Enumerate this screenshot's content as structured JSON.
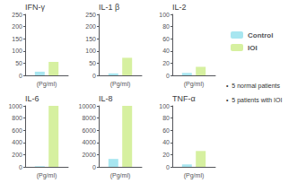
{
  "chart_data": [
    {
      "type": "bar",
      "title": "IFN-γ",
      "xlabel": "(Pg/ml)",
      "categories": [
        null
      ],
      "series": [
        {
          "name": "Control",
          "color": "#a8e6f0",
          "values": [
            15
          ]
        },
        {
          "name": "IOI",
          "color": "#d6f0a0",
          "values": [
            55
          ]
        }
      ],
      "ylim": [
        0,
        250
      ],
      "yticks": [
        0,
        50,
        100,
        150,
        200,
        250
      ],
      "grid": false,
      "tick_labels": "y",
      "legend": "right",
      "annotations": [
        "•  5 normal patients",
        "•  5 patients with IOI"
      ]
    },
    {
      "type": "bar",
      "title": "IL-1 β",
      "xlabel": "(Pg/ml)",
      "categories": [
        null
      ],
      "series": [
        {
          "name": "Control",
          "color": "#a8e6f0",
          "values": [
            8
          ]
        },
        {
          "name": "IOI",
          "color": "#d6f0a0",
          "values": [
            72
          ]
        }
      ],
      "ylim": [
        0,
        250
      ],
      "yticks": [
        0,
        50,
        100,
        150,
        200,
        250
      ],
      "grid": false,
      "tick_labels": "y"
    },
    {
      "type": "bar",
      "title": "IL-2",
      "xlabel": "(Pg/ml)",
      "categories": [
        null
      ],
      "series": [
        {
          "name": "Control",
          "color": "#a8e6f0",
          "values": [
            4
          ]
        },
        {
          "name": "IOI",
          "color": "#d6f0a0",
          "values": [
            14
          ]
        }
      ],
      "ylim": [
        0,
        100
      ],
      "yticks": [
        0,
        20,
        40,
        60,
        80,
        100
      ],
      "grid": false,
      "tick_labels": "y"
    },
    {
      "type": "bar",
      "title": "IL-6",
      "xlabel": "(Pg/ml)",
      "categories": [
        null
      ],
      "series": [
        {
          "name": "Control",
          "color": "#a8e6f0",
          "values": [
            10
          ]
        },
        {
          "name": "IOI",
          "color": "#d6f0a0",
          "values": [
            1000
          ]
        }
      ],
      "ylim": [
        0,
        1000
      ],
      "yticks": [
        0,
        200,
        400,
        600,
        800,
        1000
      ],
      "grid": false,
      "tick_labels": "y"
    },
    {
      "type": "bar",
      "title": "IL-8",
      "xlabel": "(Pg/ml)",
      "categories": [
        null
      ],
      "series": [
        {
          "name": "Control",
          "color": "#a8e6f0",
          "values": [
            1300
          ]
        },
        {
          "name": "IOI",
          "color": "#d6f0a0",
          "values": [
            10000
          ]
        }
      ],
      "ylim": [
        0,
        10000
      ],
      "yticks": [
        0,
        2000,
        4000,
        6000,
        8000,
        10000
      ],
      "grid": false,
      "tick_labels": "y"
    },
    {
      "type": "bar",
      "title": "TNF-α",
      "xlabel": "(Pg/ml)",
      "categories": [
        null
      ],
      "series": [
        {
          "name": "Control",
          "color": "#a8e6f0",
          "values": [
            4
          ]
        },
        {
          "name": "IOI",
          "color": "#d6f0a0",
          "values": [
            26
          ]
        }
      ],
      "ylim": [
        0,
        100
      ],
      "yticks": [
        0,
        20,
        40,
        60,
        80,
        100
      ],
      "grid": false,
      "tick_labels": "y"
    }
  ]
}
